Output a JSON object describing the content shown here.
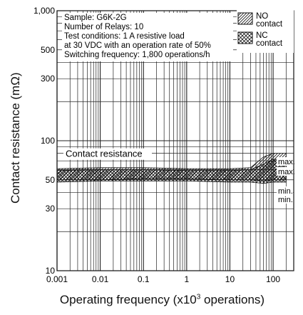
{
  "chart_data": {
    "type": "area",
    "xlabel_prefix": "Operating frequency (x10",
    "xlabel_exp": "3",
    "xlabel_suffix": " operations)",
    "ylabel": "Contact resistance (mΩ)",
    "xscale": "log",
    "yscale": "log",
    "xlim": [
      0.001,
      300
    ],
    "ylim": [
      10,
      1000
    ],
    "x_ticks": [
      "0.001",
      "0.01",
      "0.1",
      "1",
      "10",
      "100"
    ],
    "x_tick_values": [
      0.001,
      0.01,
      0.1,
      1,
      10,
      100
    ],
    "y_ticks": [
      "10",
      "30",
      "50",
      "100",
      "300",
      "500",
      "1,000"
    ],
    "y_tick_values": [
      10,
      30,
      50,
      100,
      300,
      500,
      1000
    ],
    "grid": true,
    "notes": [
      "Sample: G6K-2G",
      "Number of Relays: 10",
      "Test conditions: 1 A resistive load",
      "at 30 VDC with an operation rate of 50%",
      "Switching frequency: 1,800 operations/h"
    ],
    "annotation": "Contact resistance",
    "legend_position": "top-right",
    "legend": [
      {
        "name": "NO contact",
        "label1": "NO",
        "label2": "contact",
        "pattern": "diagonal"
      },
      {
        "name": "NC contact",
        "label1": "NC",
        "label2": "contact",
        "pattern": "cross"
      }
    ],
    "series_labels": {
      "max_no": "max.",
      "max_nc": "max.",
      "min_no": "min.",
      "min_nc": "min."
    },
    "series": [
      {
        "name": "NO contact",
        "x": [
          0.001,
          0.01,
          0.1,
          1,
          10,
          30,
          60,
          100,
          200
        ],
        "upper": [
          61,
          62,
          62,
          61,
          61,
          62,
          75,
          80,
          80
        ],
        "lower": [
          50,
          50,
          51,
          51,
          50,
          50,
          49,
          50,
          50
        ]
      },
      {
        "name": "NC contact",
        "x": [
          0.001,
          0.01,
          0.1,
          1,
          10,
          30,
          60,
          100,
          200
        ],
        "upper": [
          59,
          60,
          60,
          59,
          59,
          60,
          66,
          72,
          72
        ],
        "lower": [
          48,
          49,
          49,
          49,
          48,
          48,
          47,
          48,
          48
        ]
      }
    ]
  }
}
